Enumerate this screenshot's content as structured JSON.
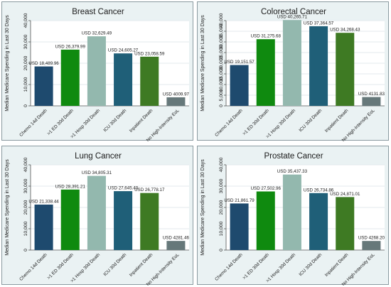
{
  "chart_data": [
    {
      "type": "bar",
      "title": "Breast Cancer",
      "ylabel": "Median Medicare Spending in Last 30 Days",
      "xlabel": "",
      "ylim": [
        0,
        40000
      ],
      "yticks": [
        0,
        10000,
        20000,
        30000,
        40000
      ],
      "ytick_labels": [
        "0",
        "10,000",
        "20,000",
        "30,000",
        "40,000"
      ],
      "categories": [
        "Chemo 14d Death",
        ">1 ED 30d Death",
        ">1 Hosp 30d Death",
        "ICU 30d Death",
        "Inpatient Death",
        "No High-Intensity EoL"
      ],
      "values": [
        18489.96,
        26379.99,
        32629.49,
        24605.27,
        23058.59,
        4009.97
      ],
      "value_labels": [
        "USD 18,489.96",
        "USD 26,379.99",
        "USD 32,629.49",
        "USD 24,605.27",
        "USD 23,058.59",
        "USD 4009.97"
      ],
      "colors": [
        "#1e4a6e",
        "#0f8a0f",
        "#93b8ae",
        "#1f5f78",
        "#3e7a23",
        "#66787a"
      ],
      "grid": true
    },
    {
      "type": "bar",
      "title": "Colorectal Cancer",
      "ylabel": "Median Medicare Spending in Last 30 Days",
      "xlabel": "",
      "ylim": [
        0,
        40000
      ],
      "yticks": [
        0,
        5000,
        10000,
        15000,
        20000,
        25000,
        30000,
        35000,
        40000
      ],
      "ytick_labels": [
        "0",
        "5,000",
        "10,000",
        "15,000",
        "20,000",
        "25,000",
        "30,000",
        "35,000",
        "40,000"
      ],
      "categories": [
        "Chemo 14d Death",
        ">1 ED 30d Death",
        ">1 Hosp 30d Death",
        "ICU 30d Death",
        "Inpatient Death",
        "No High-Intensity EoL"
      ],
      "values": [
        19151.57,
        31275.68,
        40265.71,
        37364.57,
        34268.43,
        4131.83
      ],
      "value_labels": [
        "USD 19,151.57",
        "USD 31,275.68",
        "USD 40,265.71",
        "USD 37,364.57",
        "USD 34,268.43",
        "USD 4131.83"
      ],
      "colors": [
        "#1e4a6e",
        "#0f8a0f",
        "#93b8ae",
        "#1f5f78",
        "#3e7a23",
        "#66787a"
      ],
      "grid": true
    },
    {
      "type": "bar",
      "title": "Lung Cancer",
      "ylabel": "Median Medicare Spending in Last 30 Days",
      "xlabel": "",
      "ylim": [
        0,
        40000
      ],
      "yticks": [
        0,
        10000,
        20000,
        30000,
        40000
      ],
      "ytick_labels": [
        "0",
        "10,000",
        "20,000",
        "30,000",
        "40,000"
      ],
      "categories": [
        "Chemo 14d Death",
        ">1 ED 30d Death",
        ">1 Hosp 30d Death",
        "ICU 30d Death",
        "Inpatient Death",
        "No High-Intensity EoL"
      ],
      "values": [
        21338.44,
        28391.21,
        34805.31,
        27645.4,
        26778.17,
        4281.46
      ],
      "value_labels": [
        "USD 21,338.44",
        "USD 28,391.21",
        "USD 34,805.31",
        "USD 27,645.40",
        "USD 26,778.17",
        "USD 4281.46"
      ],
      "colors": [
        "#1e4a6e",
        "#0f8a0f",
        "#93b8ae",
        "#1f5f78",
        "#3e7a23",
        "#66787a"
      ],
      "grid": true
    },
    {
      "type": "bar",
      "title": "Prostate Cancer",
      "ylabel": "Median Medicare Spending in Last 30 Days",
      "xlabel": "",
      "ylim": [
        0,
        40000
      ],
      "yticks": [
        0,
        10000,
        20000,
        30000,
        40000
      ],
      "ytick_labels": [
        "0",
        "10,000",
        "20,000",
        "30,000",
        "40,000"
      ],
      "categories": [
        "Chemo 14d Death",
        ">1 ED 30d Death",
        ">1 Hosp 30d Death",
        "ICU 30d Death",
        "Inpatient Death",
        "No High-Intensity EoL"
      ],
      "values": [
        21861.79,
        27502.96,
        35437.33,
        26734.86,
        24871.01,
        4268.2
      ],
      "value_labels": [
        "USD 21,861.79",
        "USD 27,502.96",
        "USD 35,437.33",
        "USD 26,734.86",
        "USD 24,871.01",
        "USD 4268.20"
      ],
      "colors": [
        "#1e4a6e",
        "#0f8a0f",
        "#93b8ae",
        "#1f5f78",
        "#3e7a23",
        "#66787a"
      ],
      "grid": true
    }
  ]
}
